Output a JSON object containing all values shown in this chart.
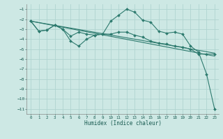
{
  "xlabel": "Humidex (Indice chaleur)",
  "background_color": "#cde8e4",
  "grid_color": "#b0d4d0",
  "line_color": "#2d7a6e",
  "xlim": [
    -0.5,
    23.5
  ],
  "ylim": [
    -11.5,
    -0.5
  ],
  "yticks": [
    -1,
    -2,
    -3,
    -4,
    -5,
    -6,
    -7,
    -8,
    -9,
    -10,
    -11
  ],
  "xticks": [
    0,
    1,
    2,
    3,
    4,
    5,
    6,
    7,
    8,
    9,
    10,
    11,
    12,
    13,
    14,
    15,
    16,
    17,
    18,
    19,
    20,
    21,
    22,
    23
  ],
  "series": [
    {
      "x": [
        0,
        1,
        2,
        3,
        4,
        5,
        6,
        7,
        8,
        9,
        10,
        11,
        12,
        13,
        14,
        15,
        16,
        17,
        18,
        19,
        20,
        21,
        22,
        23
      ],
      "y": [
        -2.2,
        -3.2,
        -3.1,
        -2.6,
        -3.0,
        -3.7,
        -3.3,
        -3.5,
        -3.6,
        -3.5,
        -2.2,
        -1.6,
        -1.0,
        -1.3,
        -2.1,
        -2.3,
        -3.2,
        -3.4,
        -3.3,
        -3.5,
        -4.7,
        -5.3,
        -7.5,
        -11.0
      ]
    },
    {
      "x": [
        0,
        1,
        2,
        3,
        4,
        5,
        6,
        7,
        8,
        9,
        10,
        11,
        12,
        13,
        14,
        15,
        16,
        17,
        18,
        19,
        20,
        21,
        22,
        23
      ],
      "y": [
        -2.2,
        -3.2,
        -3.1,
        -2.6,
        -3.0,
        -4.2,
        -4.7,
        -4.0,
        -3.6,
        -3.5,
        -3.5,
        -3.3,
        -3.3,
        -3.6,
        -3.8,
        -4.2,
        -4.4,
        -4.5,
        -4.7,
        -4.8,
        -5.0,
        -5.5,
        -5.5,
        -5.5
      ]
    },
    {
      "x": [
        0,
        23
      ],
      "y": [
        -2.2,
        -5.4
      ],
      "no_marker": true
    },
    {
      "x": [
        0,
        23
      ],
      "y": [
        -2.2,
        -5.7
      ],
      "no_marker": true
    }
  ]
}
